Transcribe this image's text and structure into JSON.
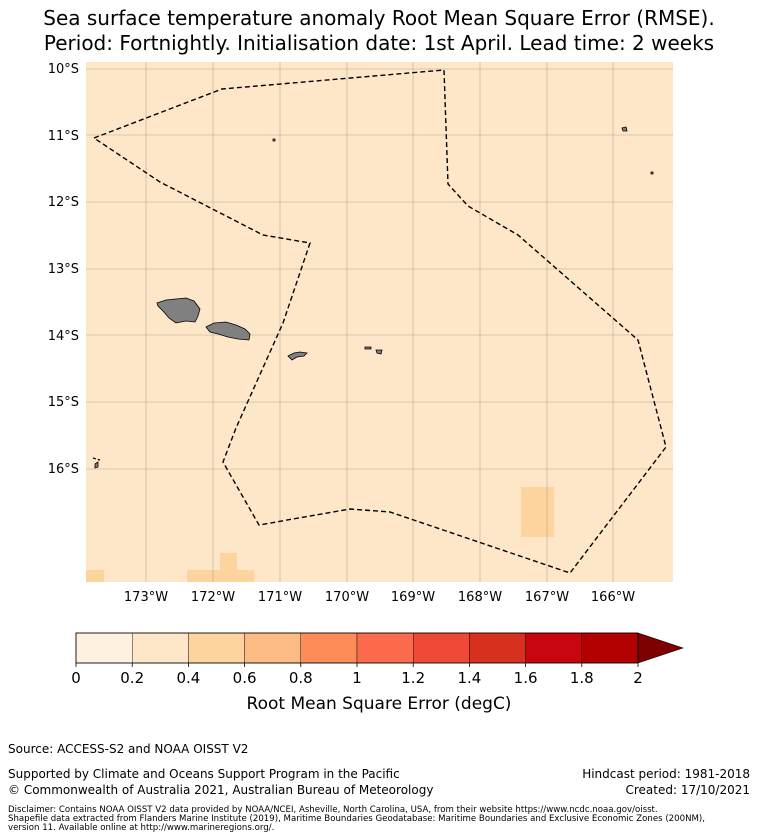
{
  "title_line1": "Sea surface temperature anomaly Root Mean Square Error (RMSE).",
  "title_line2": "Period: Fortnightly. Initialisation date: 1st April. Lead time: 2 weeks",
  "map": {
    "lat_labels": [
      "10°S",
      "11°S",
      "12°S",
      "13°S",
      "14°S",
      "15°S",
      "16°S"
    ],
    "lon_labels": [
      "173°W",
      "172°W",
      "171°W",
      "170°W",
      "169°W",
      "168°W",
      "167°W",
      "166°W"
    ],
    "ocean_color": "#fee6c8",
    "land_color": "#808080",
    "boundary_style": "dashed black line (Maritime Boundaries / EEZ)",
    "elevated_cells_value_range": [
      0.4,
      0.6
    ],
    "elevated_cell_color": "#fdd49e"
  },
  "colorbar": {
    "label": "Root Mean Square Error (degC)",
    "ticks": [
      "0",
      "0.2",
      "0.4",
      "0.6",
      "0.8",
      "1",
      "1.2",
      "1.4",
      "1.6",
      "1.8",
      "2"
    ],
    "colors": [
      "#fff1e0",
      "#fee6c8",
      "#fdd49e",
      "#fdbb84",
      "#fc8d59",
      "#fb6a4a",
      "#ef4836",
      "#d7301f",
      "#c9050f",
      "#b30000"
    ],
    "extend_color": "#7f0000"
  },
  "source": "Source: ACCESS-S2 and NOAA OISST V2",
  "support_line1": "Supported by Climate and Oceans Support Program in the Pacific",
  "support_line2": "© Commonwealth of Australia 2021, Australian Bureau of Meteorology",
  "hindcast": "Hindcast period: 1981-2018",
  "created": "Created: 17/10/2021",
  "disclaimer1": "Disclaimer: Contains NOAA OISST V2 data provided by NOAA/NCEI, Asheville, North Carolina, USA, from their website https://www.ncdc.noaa.gov/oisst.",
  "disclaimer2": "Shapefile data extracted from Flanders Marine Institute (2019), Maritime Boundaries Geodatabase: Maritime Boundaries and Exclusive Economic Zones (200NM),",
  "disclaimer3": "version 11. Available online at http://www.marineregions.org/."
}
